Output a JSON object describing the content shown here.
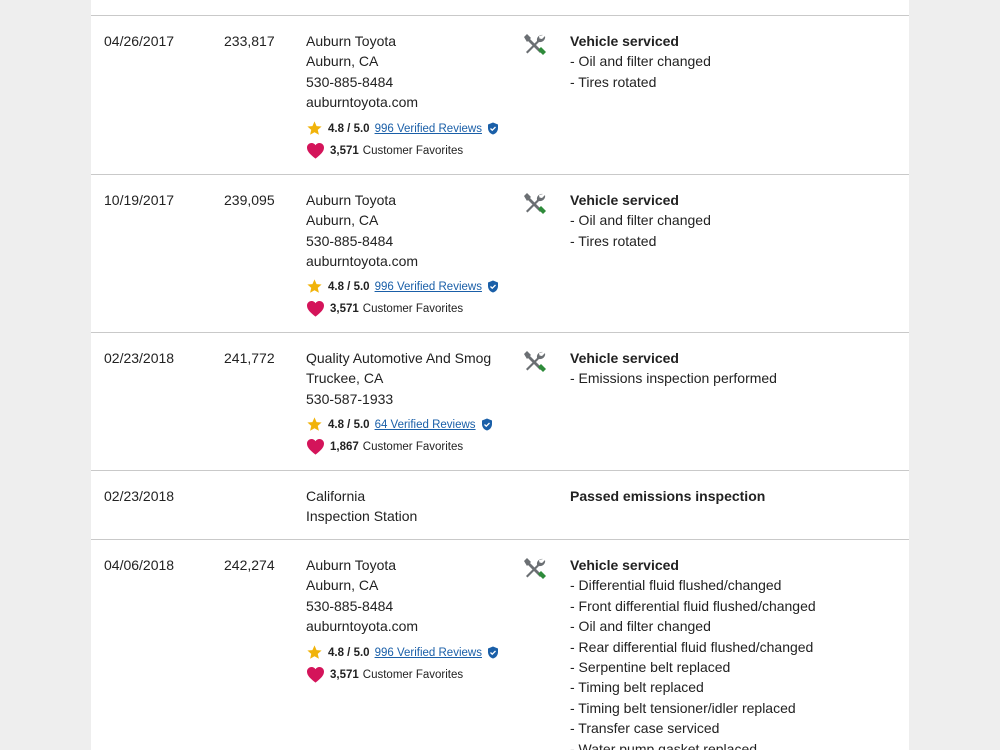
{
  "colors": {
    "star": "#f1b30a",
    "heart": "#d4145a",
    "link": "#1a5fa8",
    "divider": "#c9c9c9",
    "wrench_handle": "#2e8b3a"
  },
  "records": [
    {
      "date": "04/26/2017",
      "mileage": "233,817",
      "source": [
        "Auburn Toyota",
        "Auburn, CA",
        "530-885-8484",
        "auburntoyota.com"
      ],
      "rating": {
        "score": "4.8 / 5.0",
        "reviews": "996 Verified Reviews"
      },
      "favorites": {
        "count": "3,571",
        "label": "Customer Favorites"
      },
      "icon": "service-tools-icon",
      "comment_title": "Vehicle serviced",
      "comments": [
        "- Oil and filter changed",
        "- Tires rotated"
      ]
    },
    {
      "date": "10/19/2017",
      "mileage": "239,095",
      "source": [
        "Auburn Toyota",
        "Auburn, CA",
        "530-885-8484",
        "auburntoyota.com"
      ],
      "rating": {
        "score": "4.8 / 5.0",
        "reviews": "996 Verified Reviews"
      },
      "favorites": {
        "count": "3,571",
        "label": "Customer Favorites"
      },
      "icon": "service-tools-icon",
      "comment_title": "Vehicle serviced",
      "comments": [
        "- Oil and filter changed",
        "- Tires rotated"
      ]
    },
    {
      "date": "02/23/2018",
      "mileage": "241,772",
      "source": [
        "Quality Automotive And Smog",
        "Truckee, CA",
        "530-587-1933"
      ],
      "rating": {
        "score": "4.8 / 5.0",
        "reviews": "64 Verified Reviews"
      },
      "favorites": {
        "count": "1,867",
        "label": "Customer Favorites"
      },
      "icon": "service-tools-icon",
      "comment_title": "Vehicle serviced",
      "comments": [
        "- Emissions inspection performed"
      ]
    },
    {
      "date": "02/23/2018",
      "mileage": "",
      "source": [
        "California",
        "Inspection Station"
      ],
      "comment_title": "Passed emissions inspection",
      "comments": []
    },
    {
      "date": "04/06/2018",
      "mileage": "242,274",
      "source": [
        "Auburn Toyota",
        "Auburn, CA",
        "530-885-8484",
        "auburntoyota.com"
      ],
      "rating": {
        "score": "4.8 / 5.0",
        "reviews": "996 Verified Reviews"
      },
      "favorites": {
        "count": "3,571",
        "label": "Customer Favorites"
      },
      "icon": "service-tools-icon",
      "comment_title": "Vehicle serviced",
      "comments": [
        "- Differential fluid flushed/changed",
        "- Front differential fluid flushed/changed",
        "- Oil and filter changed",
        "- Rear differential fluid flushed/changed",
        "- Serpentine belt replaced",
        "- Timing belt replaced",
        "- Timing belt tensioner/idler replaced",
        "- Transfer case serviced",
        "- Water pump gasket replaced"
      ]
    }
  ]
}
